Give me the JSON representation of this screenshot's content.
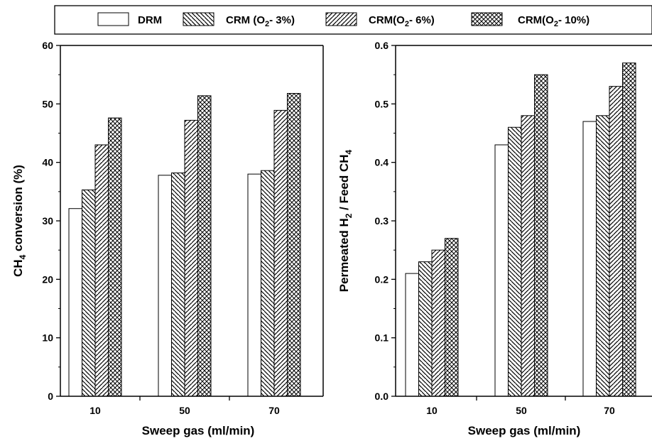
{
  "legend": [
    {
      "label": "DRM",
      "pattern": "blank"
    },
    {
      "label": "CRM (O",
      "sub": "2",
      "suffix": "- 3%)",
      "pattern": "back-diag"
    },
    {
      "label": "CRM(O",
      "sub": "2",
      "suffix": "- 6%)",
      "pattern": "fwd-diag"
    },
    {
      "label": "CRM(O",
      "sub": "2",
      "suffix": "- 10%)",
      "pattern": "cross"
    }
  ],
  "chart_data": [
    {
      "type": "bar",
      "categories": [
        "10",
        "50",
        "70"
      ],
      "series": [
        {
          "name": "DRM",
          "values": [
            32.1,
            37.8,
            38.0
          ]
        },
        {
          "name": "CRM (O2- 3%)",
          "values": [
            35.3,
            38.2,
            38.6
          ]
        },
        {
          "name": "CRM(O2- 6%)",
          "values": [
            43.0,
            47.2,
            48.9
          ]
        },
        {
          "name": "CRM(O2- 10%)",
          "values": [
            47.6,
            51.4,
            51.8
          ]
        }
      ],
      "xlabel": "Sweep gas (ml/min)",
      "ylabel_main": "CH",
      "ylabel_sub": "4",
      "ylabel_rest": " conversion (%)",
      "ylim": [
        0,
        60
      ],
      "yticks": [
        "0",
        "10",
        "20",
        "30",
        "40",
        "50",
        "60"
      ]
    },
    {
      "type": "bar",
      "categories": [
        "10",
        "50",
        "70"
      ],
      "series": [
        {
          "name": "DRM",
          "values": [
            0.21,
            0.43,
            0.47
          ]
        },
        {
          "name": "CRM (O2- 3%)",
          "values": [
            0.23,
            0.46,
            0.48
          ]
        },
        {
          "name": "CRM(O2- 6%)",
          "values": [
            0.25,
            0.48,
            0.53
          ]
        },
        {
          "name": "CRM(O2- 10%)",
          "values": [
            0.27,
            0.55,
            0.57
          ]
        }
      ],
      "xlabel": "Sweep gas (ml/min)",
      "ylabel_main": "Permeated H",
      "ylabel_sub": "2",
      "ylabel_rest": " / Feed CH",
      "ylabel_sub2": "4",
      "ylim": [
        0,
        0.6
      ],
      "yticks": [
        "0.0",
        "0.1",
        "0.2",
        "0.3",
        "0.4",
        "0.5",
        "0.6"
      ]
    }
  ]
}
